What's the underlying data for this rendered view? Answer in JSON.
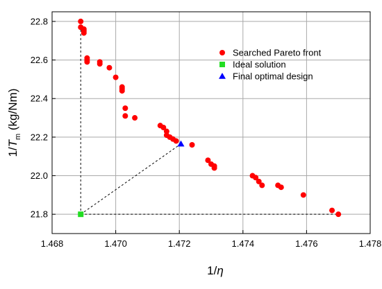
{
  "chart_data": {
    "type": "scatter",
    "xlabel": {
      "prefix": "1/",
      "var": "η",
      "sub": "",
      "suffix": ""
    },
    "ylabel": {
      "prefix": "1/",
      "var": "T",
      "sub": "m",
      "suffix": " (kg/Nm)"
    },
    "xlim": [
      1.468,
      1.478
    ],
    "ylim": [
      21.7,
      22.85
    ],
    "xticks": [
      1.468,
      1.47,
      1.472,
      1.474,
      1.476,
      1.478
    ],
    "xtick_labels": [
      "1.468",
      "1.470",
      "1.472",
      "1.474",
      "1.476",
      "1.478"
    ],
    "yticks": [
      21.8,
      22.0,
      22.2,
      22.4,
      22.6,
      22.8
    ],
    "ytick_labels": [
      "21.8",
      "22.0",
      "22.2",
      "22.4",
      "22.6",
      "22.8"
    ],
    "grid": true,
    "legend_position": "top-right",
    "series": [
      {
        "name": "Searched Pareto front",
        "marker": "circle",
        "color": "#ff0000",
        "points": [
          [
            1.4689,
            22.8
          ],
          [
            1.4689,
            22.77
          ],
          [
            1.469,
            22.76
          ],
          [
            1.469,
            22.75
          ],
          [
            1.469,
            22.74
          ],
          [
            1.4691,
            22.61
          ],
          [
            1.4691,
            22.6
          ],
          [
            1.4691,
            22.59
          ],
          [
            1.4695,
            22.59
          ],
          [
            1.4695,
            22.58
          ],
          [
            1.4698,
            22.56
          ],
          [
            1.47,
            22.51
          ],
          [
            1.4702,
            22.46
          ],
          [
            1.4702,
            22.45
          ],
          [
            1.4702,
            22.44
          ],
          [
            1.4703,
            22.35
          ],
          [
            1.4703,
            22.31
          ],
          [
            1.4706,
            22.3
          ],
          [
            1.4714,
            22.26
          ],
          [
            1.4715,
            22.25
          ],
          [
            1.4716,
            22.23
          ],
          [
            1.4716,
            22.21
          ],
          [
            1.4717,
            22.2
          ],
          [
            1.4718,
            22.19
          ],
          [
            1.4719,
            22.18
          ],
          [
            1.4724,
            22.16
          ],
          [
            1.4729,
            22.08
          ],
          [
            1.473,
            22.06
          ],
          [
            1.4731,
            22.05
          ],
          [
            1.4731,
            22.04
          ],
          [
            1.4743,
            22.0
          ],
          [
            1.4744,
            21.99
          ],
          [
            1.4745,
            21.97
          ],
          [
            1.4746,
            21.95
          ],
          [
            1.4751,
            21.95
          ],
          [
            1.4752,
            21.94
          ],
          [
            1.4759,
            21.9
          ],
          [
            1.4768,
            21.82
          ],
          [
            1.477,
            21.8
          ]
        ]
      },
      {
        "name": "Ideal solution",
        "marker": "square",
        "color": "#22dd22",
        "points": [
          [
            1.4689,
            21.8
          ]
        ]
      },
      {
        "name": "Final optimal design",
        "marker": "triangle",
        "color": "#0000ff",
        "points": [
          [
            1.47205,
            22.165
          ]
        ]
      }
    ],
    "annotations": {
      "dashed_lines": [
        [
          [
            1.4689,
            22.8
          ],
          [
            1.4689,
            21.8
          ]
        ],
        [
          [
            1.4689,
            21.8
          ],
          [
            1.477,
            21.8
          ]
        ],
        [
          [
            1.4689,
            21.8
          ],
          [
            1.47205,
            22.165
          ]
        ]
      ]
    }
  }
}
